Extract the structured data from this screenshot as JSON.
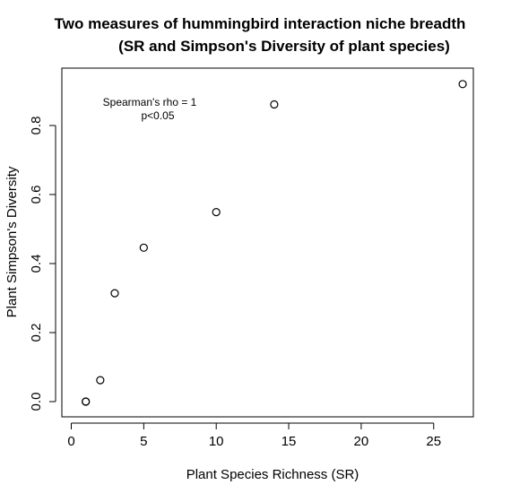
{
  "chart_data": {
    "type": "scatter",
    "title_lines": [
      "Two measures of hummingbird interaction niche breadth",
      "(SR and Simpson's Diversity of plant species)"
    ],
    "xlabel": "Plant Species Richness (SR)",
    "ylabel": "Plant Simpson's Diversity",
    "xlim": [
      0,
      28
    ],
    "ylim": [
      -0.02,
      0.95
    ],
    "xticks": [
      0,
      5,
      10,
      15,
      20,
      25
    ],
    "yticks": [
      0.0,
      0.2,
      0.4,
      0.6,
      0.8
    ],
    "ytick_labels": [
      "0.0",
      "0.2",
      "0.4",
      "0.6",
      "0.8"
    ],
    "annotation_lines": [
      "Spearman's rho = 1",
      "p<0.05"
    ],
    "marker": "open-circle",
    "grid": false,
    "points": [
      {
        "x": 1,
        "y": 0.0
      },
      {
        "x": 1,
        "y": 0.0
      },
      {
        "x": 2,
        "y": 0.062
      },
      {
        "x": 3,
        "y": 0.314
      },
      {
        "x": 5,
        "y": 0.446
      },
      {
        "x": 10,
        "y": 0.549
      },
      {
        "x": 14,
        "y": 0.861
      },
      {
        "x": 27,
        "y": 0.92
      }
    ]
  }
}
